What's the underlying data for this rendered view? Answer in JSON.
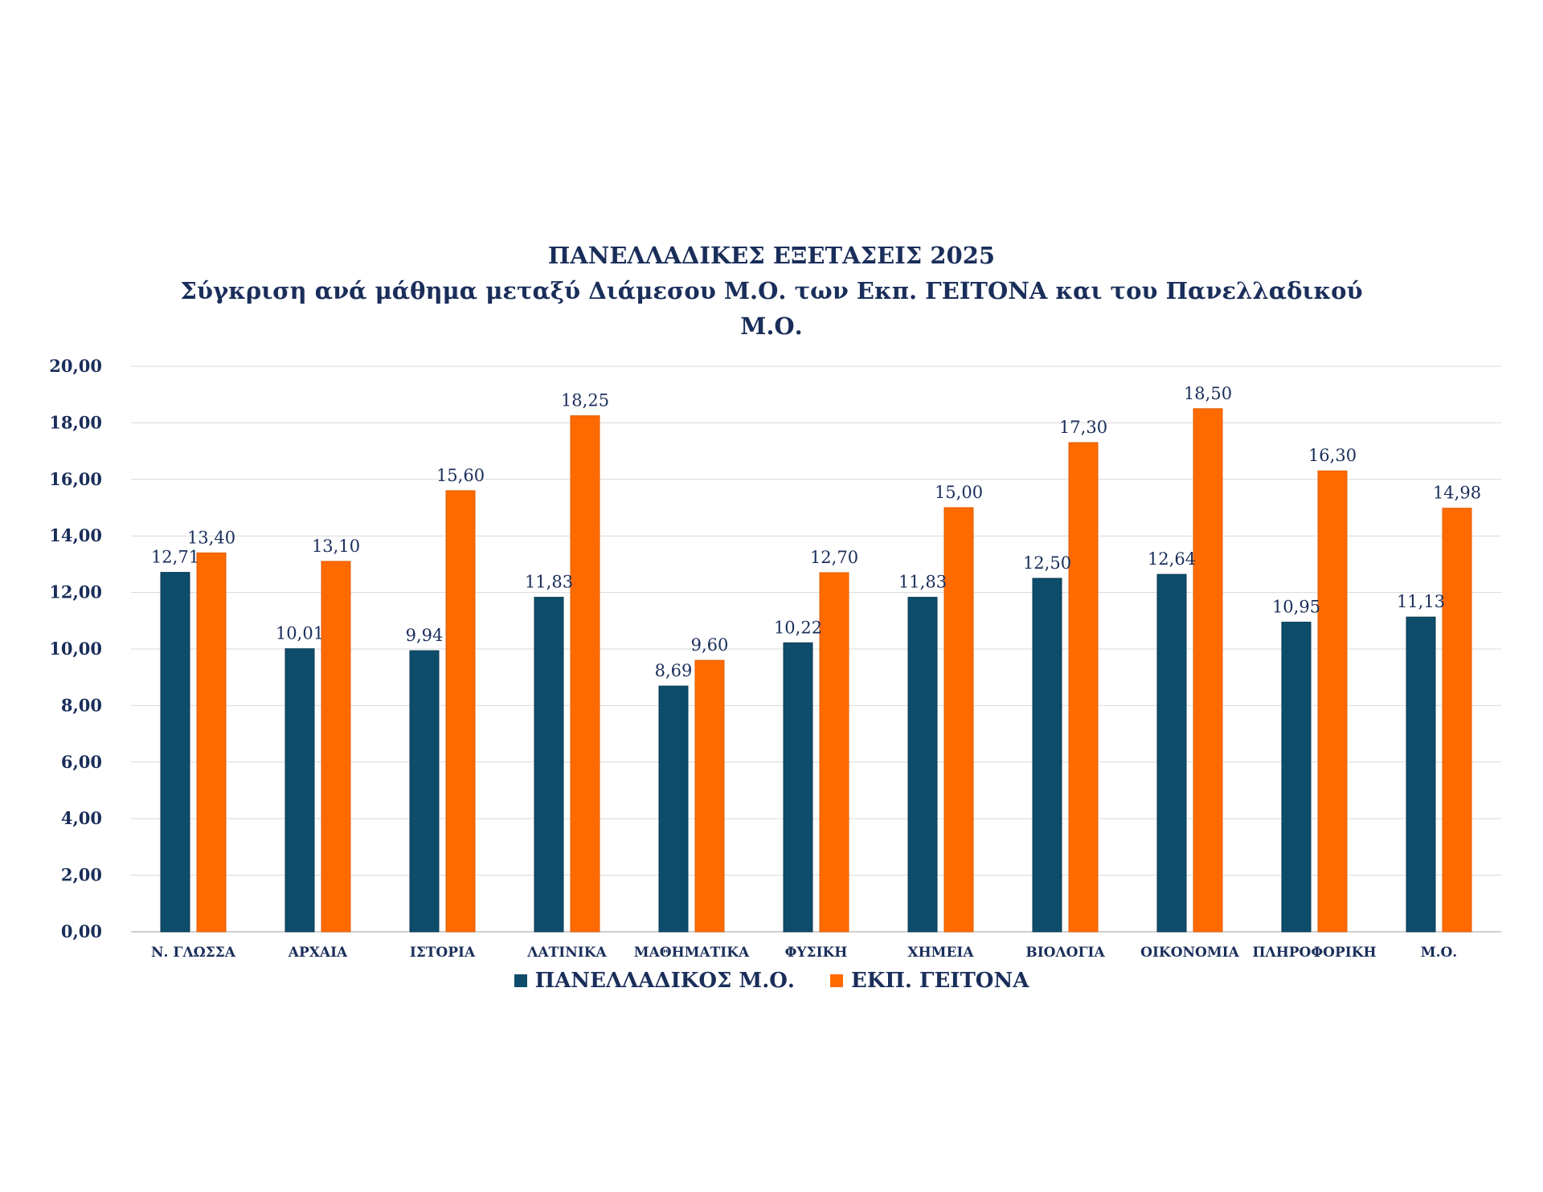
{
  "chart_data": {
    "type": "bar",
    "title_lines": [
      "ΠΑΝΕΛΛΑΔΙΚΕΣ ΕΞΕΤΑΣΕΙΣ 2025",
      "Σύγκριση ανά μάθημα μεταξύ Διάμεσου Μ.Ο. των Εκπ. ΓΕΙΤΟΝΑ και του Πανελλαδικού",
      "Μ.Ο."
    ],
    "categories": [
      "Ν. ΓΛΩΣΣΑ",
      "ΑΡΧΑΙΑ",
      "ΙΣΤΟΡΙΑ",
      "ΛΑΤΙΝΙΚΑ",
      "ΜΑΘΗΜΑΤΙΚΑ",
      "ΦΥΣΙΚΗ",
      "ΧΗΜΕΙΑ",
      "ΒΙΟΛΟΓΙΑ",
      "ΟΙΚΟΝΟΜΙΑ",
      "ΠΛΗΡΟΦΟΡΙΚΗ",
      "Μ.Ο."
    ],
    "series": [
      {
        "name": "ΠΑΝΕΛΛΑΔΙΚΟΣ Μ.Ο.",
        "color": "#0d4d6b",
        "values": [
          12.71,
          10.01,
          9.94,
          11.83,
          8.69,
          10.22,
          11.83,
          12.5,
          12.64,
          10.95,
          11.13
        ],
        "labels": [
          "12,71",
          "10,01",
          "9,94",
          "11,83",
          "8,69",
          "10,22",
          "11,83",
          "12,50",
          "12,64",
          "10,95",
          "11,13"
        ]
      },
      {
        "name": "ΕΚΠ. ΓΕΙΤΟΝΑ",
        "color": "#ff6a00",
        "values": [
          13.4,
          13.1,
          15.6,
          18.25,
          9.6,
          12.7,
          15.0,
          17.3,
          18.5,
          16.3,
          14.98
        ],
        "labels": [
          "13,40",
          "13,10",
          "15,60",
          "18,25",
          "9,60",
          "12,70",
          "15,00",
          "17,30",
          "18,50",
          "16,30",
          "14,98"
        ]
      }
    ],
    "ylim": [
      0,
      20
    ],
    "yticks": [
      0,
      2,
      4,
      6,
      8,
      10,
      12,
      14,
      16,
      18,
      20
    ],
    "ytick_labels": [
      "0,00",
      "2,00",
      "4,00",
      "6,00",
      "8,00",
      "10,00",
      "12,00",
      "14,00",
      "16,00",
      "18,00",
      "20,00"
    ],
    "grid": true,
    "legend_position": "bottom"
  }
}
